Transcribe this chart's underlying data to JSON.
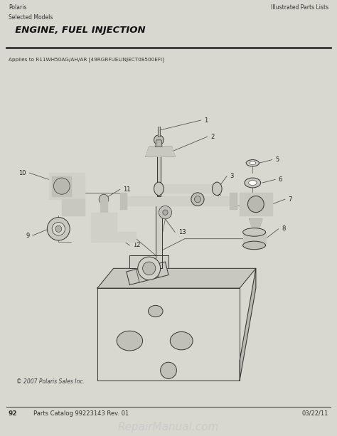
{
  "page_bg": "#d8d8d0",
  "diagram_bg": "#ffffff",
  "header_bg": "#d8d8d0",
  "title_line1": "Polaris",
  "title_line2": "Selected Models",
  "title_main": "  ENGINE, FUEL INJECTION",
  "right_header": "Illustrated Parts Lists",
  "applies_text": "Applies to R11WH50AG/AH/AR [49RGRFUELINJECT08500EFI]",
  "footer_left_num": "92",
  "footer_left_text": "Parts Catalog 99223143 Rev. 01",
  "footer_right": "03/22/11",
  "watermark": "RepairManual.com",
  "copyright": "© 2007 Polaris Sales Inc.",
  "line_color": "#333333",
  "label_color": "#222222",
  "part_fill": "#aaaaaa",
  "part_fill2": "#888888"
}
